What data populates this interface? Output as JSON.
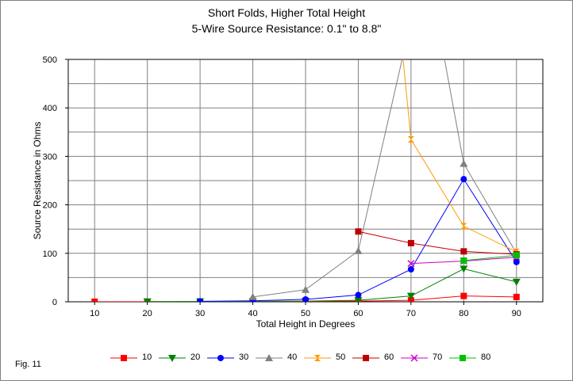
{
  "figure": {
    "title_line1": "Short Folds, Higher Total Height",
    "title_line2": "5-Wire Source Resistance: 0.1\" to 8.8\"",
    "fig_label": "Fig. 11"
  },
  "chart_data": {
    "type": "line",
    "title": "Short Folds, Higher Total Height",
    "subtitle": "5-Wire Source Resistance: 0.1\" to 8.8\"",
    "xlabel": "Total Height in Degrees",
    "ylabel": "Source Resistance in Ohms",
    "x": [
      10,
      20,
      30,
      40,
      50,
      60,
      70,
      80,
      90
    ],
    "xlim": [
      5,
      95
    ],
    "ylim": [
      0,
      500
    ],
    "y_ticks": [
      0,
      100,
      200,
      300,
      400,
      500
    ],
    "y_minor_grid_step": 50,
    "grid": true,
    "legend_position": "bottom",
    "series": [
      {
        "name": "10",
        "color": "#ff0000",
        "marker": "square",
        "points": [
          [
            10,
            0.2
          ],
          [
            20,
            0.3
          ],
          [
            30,
            0.4
          ],
          [
            40,
            0.6
          ],
          [
            50,
            0.9
          ],
          [
            60,
            1.4
          ],
          [
            70,
            3
          ],
          [
            80,
            12
          ],
          [
            90,
            10
          ]
        ]
      },
      {
        "name": "20",
        "color": "#008000",
        "marker": "triangle-down",
        "points": [
          [
            20,
            0.5
          ],
          [
            30,
            0.7
          ],
          [
            40,
            1
          ],
          [
            50,
            1.5
          ],
          [
            60,
            3
          ],
          [
            70,
            12
          ],
          [
            80,
            68
          ],
          [
            90,
            41
          ]
        ]
      },
      {
        "name": "30",
        "color": "#0000ff",
        "marker": "circle",
        "points": [
          [
            30,
            1
          ],
          [
            40,
            2
          ],
          [
            50,
            5
          ],
          [
            60,
            14
          ],
          [
            70,
            67
          ],
          [
            80,
            253
          ],
          [
            90,
            82
          ]
        ]
      },
      {
        "name": "40",
        "color": "#808080",
        "marker": "triangle-up",
        "points": [
          [
            40,
            10
          ],
          [
            50,
            25
          ],
          [
            60,
            105
          ],
          [
            70,
            580
          ],
          [
            75,
            580
          ],
          [
            80,
            285
          ],
          [
            90,
            100
          ]
        ]
      },
      {
        "name": "50",
        "color": "#ff9900",
        "marker": "hourglass",
        "points": [
          [
            68.5,
            500
          ],
          [
            70,
            335
          ],
          [
            80,
            156
          ],
          [
            90,
            103
          ]
        ]
      },
      {
        "name": "60",
        "color": "#c00000",
        "marker": "square",
        "points": [
          [
            60,
            145
          ],
          [
            70,
            121
          ],
          [
            80,
            104
          ],
          [
            90,
            98
          ]
        ]
      },
      {
        "name": "70",
        "color": "#cc00cc",
        "marker": "x",
        "points": [
          [
            70,
            79
          ],
          [
            80,
            84
          ],
          [
            90,
            92
          ]
        ]
      },
      {
        "name": "80",
        "color": "#00c000",
        "marker": "square",
        "points": [
          [
            80,
            85
          ],
          [
            90,
            96
          ]
        ]
      }
    ]
  }
}
